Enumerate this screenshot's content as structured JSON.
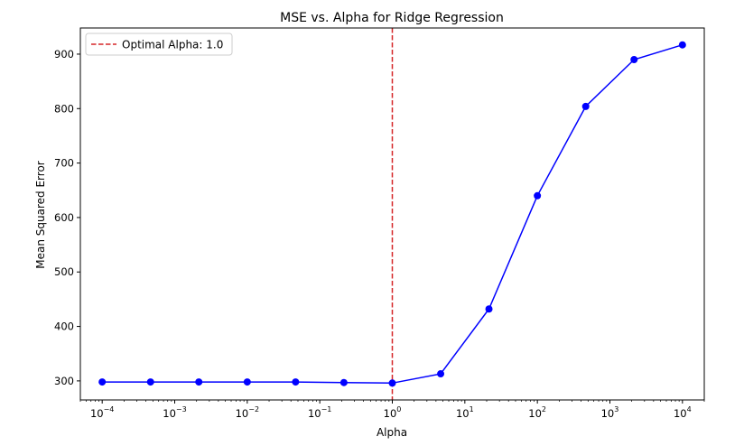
{
  "chart_data": {
    "type": "line",
    "title": "MSE vs. Alpha for Ridge Regression",
    "xlabel": "Alpha",
    "ylabel": "Mean Squared Error",
    "x_scale": "log",
    "xlim": [
      5e-05,
      20000
    ],
    "ylim": [
      265,
      948
    ],
    "x_ticks": [
      {
        "value": 0.0001,
        "base": "10",
        "exp": "−4"
      },
      {
        "value": 0.001,
        "base": "10",
        "exp": "−3"
      },
      {
        "value": 0.01,
        "base": "10",
        "exp": "−2"
      },
      {
        "value": 0.1,
        "base": "10",
        "exp": "−1"
      },
      {
        "value": 1,
        "base": "10",
        "exp": "0"
      },
      {
        "value": 10,
        "base": "10",
        "exp": "1"
      },
      {
        "value": 100,
        "base": "10",
        "exp": "2"
      },
      {
        "value": 1000,
        "base": "10",
        "exp": "3"
      },
      {
        "value": 10000,
        "base": "10",
        "exp": "4"
      }
    ],
    "y_ticks": [
      {
        "value": 300,
        "label": "300"
      },
      {
        "value": 400,
        "label": "400"
      },
      {
        "value": 500,
        "label": "500"
      },
      {
        "value": 600,
        "label": "600"
      },
      {
        "value": 700,
        "label": "700"
      },
      {
        "value": 800,
        "label": "800"
      },
      {
        "value": 900,
        "label": "900"
      }
    ],
    "grid": false,
    "legend_position": "top-left",
    "series": [
      {
        "color": "#0000ff",
        "x": [
          0.0001,
          0.000464,
          0.00215,
          0.01,
          0.0464,
          0.215,
          1.0,
          4.64,
          21.5,
          100,
          464,
          2154,
          10000
        ],
        "y": [
          298,
          298,
          298,
          298,
          298,
          297,
          296,
          313,
          432,
          640,
          804,
          890,
          917
        ]
      }
    ],
    "reference_line": {
      "orientation": "vertical",
      "x": 1.0,
      "color": "#d62728",
      "style": "dashed",
      "legend_label": "Optimal Alpha: 1.0"
    }
  }
}
